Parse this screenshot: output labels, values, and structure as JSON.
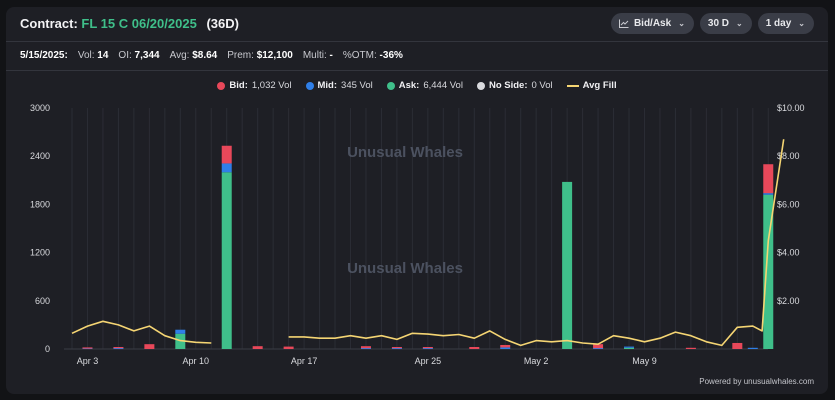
{
  "header": {
    "label": "Contract:",
    "contract": "FL 15 C 06/20/2025",
    "days": "(36D)"
  },
  "controls": [
    {
      "label": "Bid/Ask",
      "icon": "chart-icon"
    },
    {
      "label": "30 D"
    },
    {
      "label": "1 day"
    }
  ],
  "stats": {
    "date": "5/15/2025:",
    "vol_label": "Vol:",
    "vol": "14",
    "oi_label": "OI:",
    "oi": "7,344",
    "avg_label": "Avg:",
    "avg": "$8.64",
    "prem_label": "Prem:",
    "prem": "$12,100",
    "multi_label": "Multi:",
    "multi": "-",
    "otm_label": "%OTM:",
    "otm": "-36%"
  },
  "legend": [
    {
      "name": "Bid:",
      "value": "1,032 Vol",
      "color": "#e8485a",
      "shape": "dot"
    },
    {
      "name": "Mid:",
      "value": "345 Vol",
      "color": "#2f7fe8",
      "shape": "dot"
    },
    {
      "name": "Ask:",
      "value": "6,444 Vol",
      "color": "#3fbf8a",
      "shape": "dot"
    },
    {
      "name": "No Side:",
      "value": "0 Vol",
      "color": "#d9dade",
      "shape": "dot"
    },
    {
      "name": "Avg Fill",
      "value": "",
      "color": "#f5d573",
      "shape": "line"
    }
  ],
  "watermark": "Unusual Whales",
  "footer": "Powered by unusualwhales.com",
  "colors": {
    "bid": "#e8485a",
    "mid": "#2f7fe8",
    "ask": "#3fbf8a",
    "fill": "#f5d573",
    "grid": "#2b2d35"
  },
  "chart_data": {
    "type": "bar",
    "stacked": true,
    "x_start": "2025-04-02",
    "x_days": 45,
    "x_ticks": [
      {
        "day": 1,
        "label": "Apr 3"
      },
      {
        "day": 8,
        "label": "Apr 10"
      },
      {
        "day": 15,
        "label": "Apr 17"
      },
      {
        "day": 23,
        "label": "Apr 25"
      },
      {
        "day": 30,
        "label": "May 2"
      },
      {
        "day": 37,
        "label": "May 9"
      }
    ],
    "y_left": {
      "min": 0,
      "max": 3000,
      "ticks": [
        "0",
        "600",
        "1200",
        "1800",
        "2400",
        "3000"
      ],
      "tick_values": [
        0,
        600,
        1200,
        1800,
        2400,
        3000
      ]
    },
    "y_right": {
      "min": 0,
      "max": 10,
      "ticks": [
        "$2.00",
        "$4.00",
        "$6.00",
        "$8.00",
        "$10.00"
      ],
      "tick_values": [
        2,
        4,
        6,
        8,
        10
      ]
    },
    "bars": [
      {
        "day": 1,
        "bid": 5,
        "mid": 5,
        "ask": 0
      },
      {
        "day": 3,
        "bid": 10,
        "mid": 10,
        "ask": 0
      },
      {
        "day": 5,
        "bid": 60,
        "mid": 0,
        "ask": 0
      },
      {
        "day": 7,
        "bid": 0,
        "mid": 50,
        "ask": 190
      },
      {
        "day": 10,
        "bid": 220,
        "mid": 110,
        "ask": 2200
      },
      {
        "day": 12,
        "bid": 35,
        "mid": 0,
        "ask": 0
      },
      {
        "day": 14,
        "bid": 30,
        "mid": 0,
        "ask": 0
      },
      {
        "day": 19,
        "bid": 25,
        "mid": 10,
        "ask": 0
      },
      {
        "day": 21,
        "bid": 15,
        "mid": 10,
        "ask": 0
      },
      {
        "day": 23,
        "bid": 10,
        "mid": 10,
        "ask": 0
      },
      {
        "day": 26,
        "bid": 25,
        "mid": 0,
        "ask": 0
      },
      {
        "day": 28,
        "bid": 30,
        "mid": 20,
        "ask": 0
      },
      {
        "day": 32,
        "bid": 0,
        "mid": 0,
        "ask": 2080
      },
      {
        "day": 34,
        "bid": 50,
        "mid": 10,
        "ask": 0
      },
      {
        "day": 36,
        "bid": 0,
        "mid": 5,
        "ask": 15
      },
      {
        "day": 40,
        "bid": 10,
        "mid": 0,
        "ask": 0
      },
      {
        "day": 43,
        "bid": 75,
        "mid": 0,
        "ask": 0
      },
      {
        "day": 44,
        "bid": 0,
        "mid": 10,
        "ask": 0
      },
      {
        "day": 45,
        "bid": 360,
        "mid": 20,
        "ask": 1920
      }
    ],
    "avg_fill": [
      {
        "day": 0,
        "price": 0.65
      },
      {
        "day": 1,
        "price": 0.95
      },
      {
        "day": 2,
        "price": 1.15
      },
      {
        "day": 3,
        "price": 1.0
      },
      {
        "day": 4,
        "price": 0.75
      },
      {
        "day": 5,
        "price": 0.95
      },
      {
        "day": 6,
        "price": 0.55
      },
      {
        "day": 7,
        "price": 0.35
      },
      {
        "day": 8,
        "price": 0.28
      },
      {
        "day": 9,
        "price": 0.25
      },
      {
        "day": null,
        "price": null
      },
      {
        "day": 14,
        "price": 0.5
      },
      {
        "day": 15,
        "price": 0.5
      },
      {
        "day": 16,
        "price": 0.45
      },
      {
        "day": 17,
        "price": 0.45
      },
      {
        "day": 18,
        "price": 0.55
      },
      {
        "day": 19,
        "price": 0.45
      },
      {
        "day": 20,
        "price": 0.55
      },
      {
        "day": 21,
        "price": 0.4
      },
      {
        "day": 22,
        "price": 0.65
      },
      {
        "day": 23,
        "price": 0.62
      },
      {
        "day": 24,
        "price": 0.55
      },
      {
        "day": 25,
        "price": 0.6
      },
      {
        "day": 26,
        "price": 0.45
      },
      {
        "day": 27,
        "price": 0.75
      },
      {
        "day": 28,
        "price": 0.4
      },
      {
        "day": 29,
        "price": 0.15
      },
      {
        "day": 30,
        "price": 0.35
      },
      {
        "day": 31,
        "price": 0.3
      },
      {
        "day": 32,
        "price": 0.35
      },
      {
        "day": 33,
        "price": 0.25
      },
      {
        "day": 34,
        "price": 0.2
      },
      {
        "day": 35,
        "price": 0.55
      },
      {
        "day": 36,
        "price": 0.45
      },
      {
        "day": 37,
        "price": 0.3
      },
      {
        "day": 38,
        "price": 0.45
      },
      {
        "day": 39,
        "price": 0.7
      },
      {
        "day": 40,
        "price": 0.55
      },
      {
        "day": 41,
        "price": 0.3
      },
      {
        "day": 42,
        "price": 0.15
      },
      {
        "day": 43,
        "price": 0.9
      },
      {
        "day": 44,
        "price": 0.95
      },
      {
        "day": 44.6,
        "price": 0.75
      },
      {
        "day": 45,
        "price": 4.5
      },
      {
        "day": 46,
        "price": 8.7
      }
    ]
  }
}
